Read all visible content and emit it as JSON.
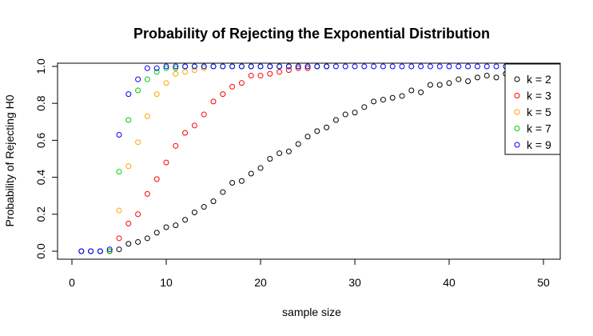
{
  "chart_data": {
    "type": "scatter",
    "title": "Probability of Rejecting the Exponential Distribution",
    "xlabel": "sample size",
    "ylabel": "Probability of Rejecting H0",
    "xlim": [
      0,
      51
    ],
    "ylim": [
      0,
      1
    ],
    "x_ticks": [
      "0",
      "10",
      "20",
      "30",
      "40",
      "50"
    ],
    "y_ticks": [
      "0.0",
      "0.2",
      "0.4",
      "0.6",
      "0.8",
      "1.0"
    ],
    "grid": false,
    "legend_position": "right",
    "series": [
      {
        "name": "k = 2",
        "color": "#000000",
        "points": [
          [
            1,
            0
          ],
          [
            2,
            0
          ],
          [
            3,
            0
          ],
          [
            4,
            0
          ],
          [
            5,
            0.01
          ],
          [
            6,
            0.04
          ],
          [
            7,
            0.05
          ],
          [
            8,
            0.07
          ],
          [
            9,
            0.1
          ],
          [
            10,
            0.13
          ],
          [
            11,
            0.14
          ],
          [
            12,
            0.17
          ],
          [
            13,
            0.21
          ],
          [
            14,
            0.24
          ],
          [
            15,
            0.27
          ],
          [
            16,
            0.32
          ],
          [
            17,
            0.37
          ],
          [
            18,
            0.38
          ],
          [
            19,
            0.42
          ],
          [
            20,
            0.45
          ],
          [
            21,
            0.5
          ],
          [
            22,
            0.53
          ],
          [
            23,
            0.54
          ],
          [
            24,
            0.58
          ],
          [
            25,
            0.62
          ],
          [
            26,
            0.65
          ],
          [
            27,
            0.67
          ],
          [
            28,
            0.71
          ],
          [
            29,
            0.74
          ],
          [
            30,
            0.75
          ],
          [
            31,
            0.78
          ],
          [
            32,
            0.81
          ],
          [
            33,
            0.82
          ],
          [
            34,
            0.83
          ],
          [
            35,
            0.84
          ],
          [
            36,
            0.87
          ],
          [
            37,
            0.86
          ],
          [
            38,
            0.9
          ],
          [
            39,
            0.9
          ],
          [
            40,
            0.91
          ],
          [
            41,
            0.93
          ],
          [
            42,
            0.92
          ],
          [
            43,
            0.94
          ],
          [
            44,
            0.95
          ],
          [
            45,
            0.94
          ],
          [
            46,
            0.96
          ],
          [
            47,
            0.96
          ],
          [
            48,
            0.97
          ],
          [
            49,
            0.97
          ],
          [
            50,
            0.98
          ]
        ]
      },
      {
        "name": "k = 3",
        "color": "#ff0000",
        "points": [
          [
            4,
            0
          ],
          [
            5,
            0.07
          ],
          [
            6,
            0.15
          ],
          [
            7,
            0.2
          ],
          [
            8,
            0.31
          ],
          [
            9,
            0.39
          ],
          [
            10,
            0.48
          ],
          [
            11,
            0.57
          ],
          [
            12,
            0.64
          ],
          [
            13,
            0.68
          ],
          [
            14,
            0.74
          ],
          [
            15,
            0.81
          ],
          [
            16,
            0.85
          ],
          [
            17,
            0.89
          ],
          [
            18,
            0.91
          ],
          [
            19,
            0.95
          ],
          [
            20,
            0.95
          ],
          [
            21,
            0.96
          ],
          [
            22,
            0.97
          ],
          [
            23,
            0.98
          ],
          [
            24,
            0.99
          ],
          [
            25,
            0.99
          ],
          [
            26,
            1.0
          ],
          [
            27,
            1.0
          ]
        ]
      },
      {
        "name": "k = 5",
        "color": "#ffa500",
        "points": [
          [
            4,
            0
          ],
          [
            5,
            0.22
          ],
          [
            6,
            0.46
          ],
          [
            7,
            0.59
          ],
          [
            8,
            0.73
          ],
          [
            9,
            0.85
          ],
          [
            10,
            0.91
          ],
          [
            11,
            0.96
          ],
          [
            12,
            0.97
          ],
          [
            13,
            0.98
          ],
          [
            14,
            0.99
          ],
          [
            15,
            1.0
          ],
          [
            16,
            1.0
          ],
          [
            17,
            1.0
          ],
          [
            18,
            1.0
          ],
          [
            19,
            1.0
          ],
          [
            20,
            1.0
          ],
          [
            21,
            1.0
          ],
          [
            22,
            1.0
          ],
          [
            23,
            1.0
          ],
          [
            24,
            1.0
          ],
          [
            25,
            1.0
          ],
          [
            26,
            1.0
          ],
          [
            27,
            1.0
          ]
        ]
      },
      {
        "name": "k = 7",
        "color": "#00cc00",
        "points": [
          [
            4,
            0
          ],
          [
            5,
            0.43
          ],
          [
            6,
            0.71
          ],
          [
            7,
            0.87
          ],
          [
            8,
            0.93
          ],
          [
            9,
            0.97
          ],
          [
            10,
            0.99
          ],
          [
            11,
            0.99
          ],
          [
            12,
            1.0
          ],
          [
            13,
            1.0
          ],
          [
            14,
            1.0
          ],
          [
            15,
            1.0
          ],
          [
            16,
            1.0
          ],
          [
            17,
            1.0
          ],
          [
            18,
            1.0
          ],
          [
            19,
            1.0
          ],
          [
            20,
            1.0
          ],
          [
            21,
            1.0
          ],
          [
            22,
            1.0
          ],
          [
            23,
            1.0
          ],
          [
            24,
            1.0
          ],
          [
            25,
            1.0
          ],
          [
            26,
            1.0
          ],
          [
            27,
            1.0
          ]
        ]
      },
      {
        "name": "k = 9",
        "color": "#0000ff",
        "points": [
          [
            1,
            0
          ],
          [
            2,
            0
          ],
          [
            3,
            0
          ],
          [
            4,
            0.01
          ],
          [
            5,
            0.63
          ],
          [
            6,
            0.85
          ],
          [
            7,
            0.93
          ],
          [
            8,
            0.99
          ],
          [
            9,
            0.99
          ],
          [
            10,
            1.0
          ],
          [
            11,
            1.0
          ],
          [
            12,
            1.0
          ],
          [
            13,
            1.0
          ],
          [
            14,
            1.0
          ],
          [
            15,
            1.0
          ],
          [
            16,
            1.0
          ],
          [
            17,
            1.0
          ],
          [
            18,
            1.0
          ],
          [
            19,
            1.0
          ],
          [
            20,
            1.0
          ],
          [
            21,
            1.0
          ],
          [
            22,
            1.0
          ],
          [
            23,
            1.0
          ],
          [
            24,
            1.0
          ],
          [
            25,
            1.0
          ],
          [
            26,
            1.0
          ],
          [
            27,
            1.0
          ],
          [
            28,
            1.0
          ],
          [
            29,
            1.0
          ],
          [
            30,
            1.0
          ],
          [
            31,
            1.0
          ],
          [
            32,
            1.0
          ],
          [
            33,
            1.0
          ],
          [
            34,
            1.0
          ],
          [
            35,
            1.0
          ],
          [
            36,
            1.0
          ],
          [
            37,
            1.0
          ],
          [
            38,
            1.0
          ],
          [
            39,
            1.0
          ],
          [
            40,
            1.0
          ],
          [
            41,
            1.0
          ],
          [
            42,
            1.0
          ],
          [
            43,
            1.0
          ],
          [
            44,
            1.0
          ],
          [
            45,
            1.0
          ],
          [
            46,
            1.0
          ],
          [
            47,
            1.0
          ],
          [
            48,
            1.0
          ],
          [
            49,
            1.0
          ],
          [
            50,
            1.0
          ]
        ]
      }
    ]
  }
}
